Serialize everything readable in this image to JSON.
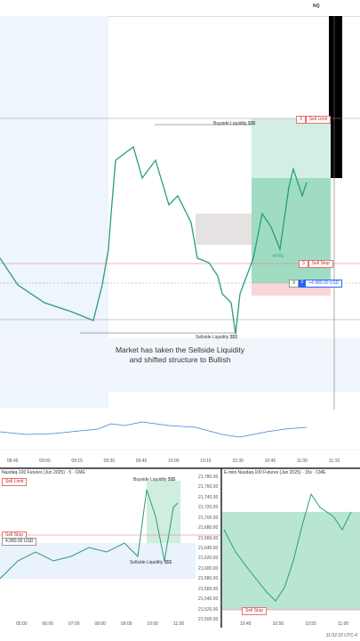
{
  "top_bar": {
    "symbol": "NQ"
  },
  "main_chart": {
    "buyside": "Buyside Liquidity $$$",
    "sellside": "Sellside Liquidity $$$",
    "sell_limit_qty": "3",
    "sell_limit": "Sell Limit",
    "sell_stop_qty": "3",
    "sell_stop": "Sell Stop",
    "pnl_close": "X",
    "pnl_qty": "3",
    "pnl": "+4,980.00 USD",
    "fvg": "+FVG",
    "caption_line1": "Market has taken the Sellside Liquidity",
    "caption_line2": "and shifted structure to Bullish",
    "times": [
      "08:45",
      "09:00",
      "09:15",
      "09:30",
      "09:45",
      "10:00",
      "10:15",
      "10:30",
      "10:45",
      "11:00",
      "11:15"
    ]
  },
  "left_panel": {
    "title": "Nasdaq-100 Futures (Jun 2025) · 5 · CME",
    "buyside": "Buyside Liquidity $$$",
    "sellside": "Sellside Liquidity $$$",
    "sell_limit": "Sell Limit",
    "sell_stop": "Sell Stop",
    "pnl": "4,980.00 USD",
    "prices": [
      "21,780.00",
      "21,760.00",
      "21,740.00",
      "21,720.00",
      "21,700.00",
      "21,680.00",
      "21,660.00",
      "21,640.00",
      "21,620.00",
      "21,600.00",
      "21,580.00",
      "21,560.00",
      "21,540.00",
      "21,520.00",
      "21,500.00"
    ],
    "times": [
      "05:00",
      "06:00",
      "07:00",
      "08:00",
      "09:00",
      "10:00",
      "11:00"
    ]
  },
  "right_panel": {
    "title": "E-mini Nasdaq-100 Futures (Jun 2025) · 15s · CME",
    "sell_stop": "Sell Stop",
    "times": [
      "10:45",
      "10:50",
      "10:55",
      "11:00"
    ]
  },
  "footer": {
    "clock": "11:02:22 UTC-4"
  }
}
